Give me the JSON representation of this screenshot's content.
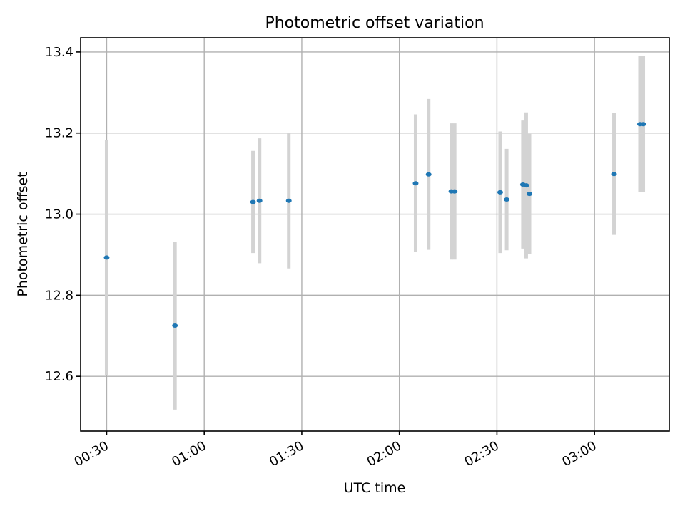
{
  "chart_data": {
    "type": "scatter",
    "title": "Photometric offset variation",
    "xlabel": "UTC time",
    "ylabel": "Photometric offset",
    "x_is_time": true,
    "xlim": [
      "00:22",
      "03:23"
    ],
    "ylim": [
      12.465,
      13.435
    ],
    "x_ticks": [
      "00:30",
      "01:00",
      "01:30",
      "02:00",
      "02:30",
      "03:00"
    ],
    "y_ticks": [
      "12.6",
      "12.8",
      "13.0",
      "13.2",
      "13.4"
    ],
    "grid": true,
    "colors": {
      "points": "#1f77b4",
      "errorbars": "#d3d3d3",
      "grid": "#b0b0b0"
    },
    "points": [
      {
        "x": "00:30",
        "y": 12.893,
        "yerr": 0.29
      },
      {
        "x": "00:51",
        "y": 12.725,
        "yerr": 0.207
      },
      {
        "x": "01:15",
        "y": 13.03,
        "yerr": 0.126
      },
      {
        "x": "01:17",
        "y": 13.033,
        "yerr": 0.154
      },
      {
        "x": "01:26",
        "y": 13.033,
        "yerr": 0.167
      },
      {
        "x": "02:05",
        "y": 13.076,
        "yerr": 0.17
      },
      {
        "x": "02:09",
        "y": 13.098,
        "yerr": 0.186
      },
      {
        "x": "02:16",
        "y": 13.056,
        "yerr": 0.168
      },
      {
        "x": "02:17",
        "y": 13.056,
        "yerr": 0.168
      },
      {
        "x": "02:31",
        "y": 13.054,
        "yerr": 0.15
      },
      {
        "x": "02:33",
        "y": 13.036,
        "yerr": 0.125
      },
      {
        "x": "02:38",
        "y": 13.073,
        "yerr": 0.158
      },
      {
        "x": "02:39",
        "y": 13.071,
        "yerr": 0.18
      },
      {
        "x": "02:40",
        "y": 13.05,
        "yerr": 0.148
      },
      {
        "x": "03:06",
        "y": 13.099,
        "yerr": 0.15
      },
      {
        "x": "03:14",
        "y": 13.222,
        "yerr": 0.168
      },
      {
        "x": "03:15",
        "y": 13.222,
        "yerr": 0.168
      }
    ]
  }
}
